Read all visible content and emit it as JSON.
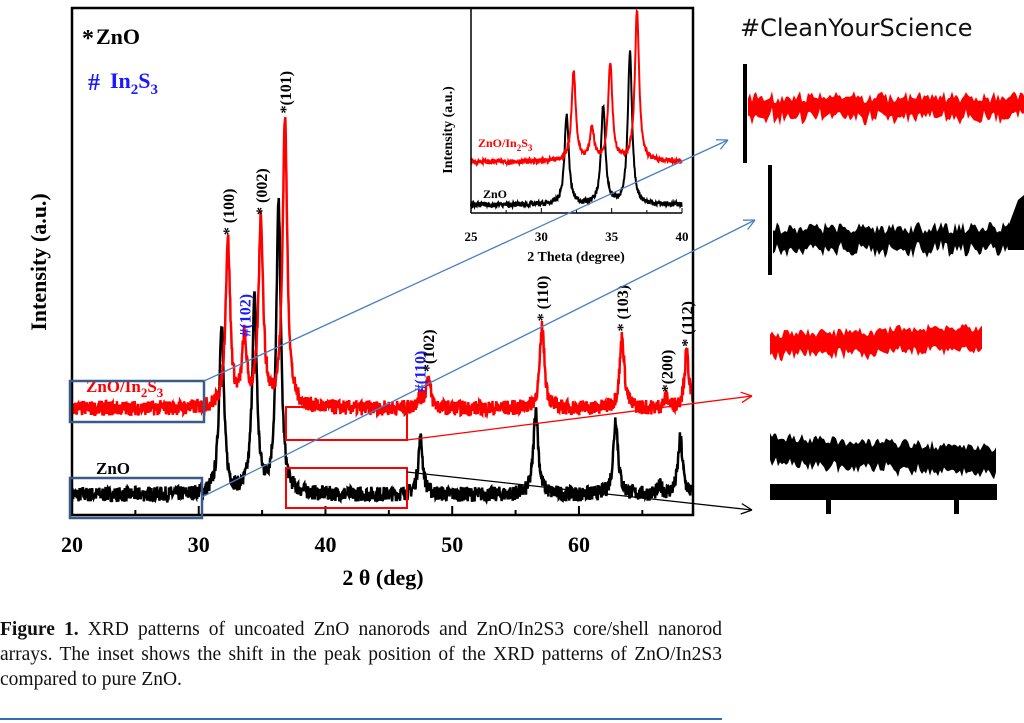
{
  "hashtag": "#CleanYourScience",
  "caption": {
    "label": "Figure 1.",
    "text": " XRD patterns of uncoated ZnO nanorods and ZnO/In2S3 core/shell nanorod arrays. The inset shows the shift in the peak position of the XRD patterns of ZnO/In2S3 compared to pure ZnO."
  },
  "colors": {
    "zno": "#000000",
    "zno_in2s3": "#ff0000",
    "in2s3_marker": "#1a1aff",
    "zoom_line_blue": "#4a7fc1",
    "zoom_box_blue": "#3b5a8a",
    "zoom_box_red": "#ff0000"
  },
  "chart_data": [
    {
      "type": "line",
      "xlabel": "2 θ (deg)",
      "ylabel": "Intensity (a.u.)",
      "xlim": [
        20,
        69
      ],
      "ylim": [
        0,
        100
      ],
      "xticks": [
        20,
        30,
        40,
        50,
        60
      ],
      "legend": [
        {
          "marker": "*",
          "label": "ZnO"
        },
        {
          "marker": "#",
          "label": "In2S3"
        }
      ],
      "legend_placement": "top-left",
      "series": [
        {
          "name": "ZnO",
          "color": "#000000",
          "baseline": 4,
          "peaks": [
            {
              "x": 31.8,
              "y": 38
            },
            {
              "x": 34.4,
              "y": 42
            },
            {
              "x": 36.3,
              "y": 61
            },
            {
              "x": 47.5,
              "y": 15
            },
            {
              "x": 56.6,
              "y": 21
            },
            {
              "x": 62.9,
              "y": 19
            },
            {
              "x": 66.4,
              "y": 5.5
            },
            {
              "x": 68.0,
              "y": 15
            }
          ]
        },
        {
          "name": "ZnO/In2S3",
          "color": "#ff0000",
          "baseline": 21,
          "peaks": [
            {
              "x": 32.3,
              "y": 54
            },
            {
              "x": 33.6,
              "y": 34
            },
            {
              "x": 34.9,
              "y": 58
            },
            {
              "x": 36.8,
              "y": 78
            },
            {
              "x": 47.4,
              "y": 23
            },
            {
              "x": 48.1,
              "y": 27
            },
            {
              "x": 57.1,
              "y": 37
            },
            {
              "x": 63.4,
              "y": 35
            },
            {
              "x": 66.9,
              "y": 23
            },
            {
              "x": 68.5,
              "y": 32
            }
          ]
        }
      ],
      "annotations": [
        {
          "x": 32.3,
          "text": "* (100)",
          "color": "#000000"
        },
        {
          "x": 33.6,
          "text": "#(102)",
          "color": "#1a1aff"
        },
        {
          "x": 34.9,
          "text": "* (002)",
          "color": "#000000"
        },
        {
          "x": 36.8,
          "text": "*(101)",
          "color": "#000000"
        },
        {
          "x": 47.4,
          "text": "#(110)",
          "color": "#1a1aff"
        },
        {
          "x": 48.1,
          "text": "*(102)",
          "color": "#000000"
        },
        {
          "x": 57.1,
          "text": "* (110)",
          "color": "#000000"
        },
        {
          "x": 63.4,
          "text": "* (103)",
          "color": "#000000"
        },
        {
          "x": 66.9,
          "text": "*(200)",
          "color": "#000000"
        },
        {
          "x": 68.5,
          "text": "* (112)",
          "color": "#000000"
        }
      ]
    },
    {
      "type": "line",
      "xlabel": "2 Theta (degree)",
      "ylabel": "Intensity (a.u.)",
      "xlim": [
        25,
        40
      ],
      "ylim": [
        0,
        100
      ],
      "xticks": [
        25,
        30,
        35,
        40
      ],
      "series": [
        {
          "name": "ZnO",
          "color": "#000000",
          "baseline": 4,
          "peaks": [
            {
              "x": 31.8,
              "y": 48
            },
            {
              "x": 34.4,
              "y": 52
            },
            {
              "x": 36.3,
              "y": 78
            }
          ]
        },
        {
          "name": "ZnO/In2S3",
          "color": "#ff0000",
          "baseline": 25,
          "peaks": [
            {
              "x": 32.3,
              "y": 69
            },
            {
              "x": 33.6,
              "y": 41
            },
            {
              "x": 34.9,
              "y": 73
            },
            {
              "x": 36.8,
              "y": 98
            }
          ]
        }
      ]
    }
  ]
}
